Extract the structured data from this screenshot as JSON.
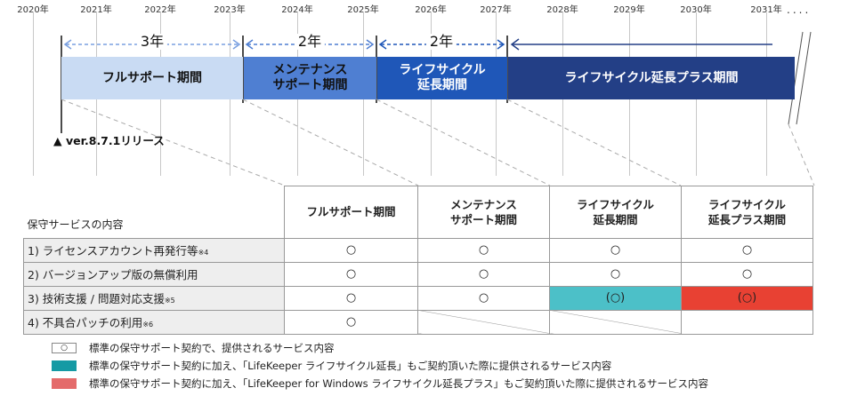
{
  "timeline": {
    "years": [
      "2020年",
      "2021年",
      "2022年",
      "2023年",
      "2024年",
      "2025年",
      "2026年",
      "2027年",
      "2028年",
      "2029年",
      "2030年",
      "2031年"
    ],
    "more_marker": "....",
    "spans": [
      {
        "label": "3年"
      },
      {
        "label": "2年"
      },
      {
        "label": "2年"
      }
    ],
    "phases": [
      {
        "label": "フルサポート期間",
        "color": "#c9dbf3",
        "text_color": "#111111"
      },
      {
        "label": "メンテナンス\nサポート期間",
        "color": "#4f7fd2",
        "text_color": "#111111"
      },
      {
        "label": "ライフサイクル\n延長期間",
        "color": "#1f57b8",
        "text_color": "#ffffff"
      },
      {
        "label": "ライフサイクル延長プラス期間",
        "color": "#233f86",
        "text_color": "#ffffff"
      }
    ],
    "release": {
      "marker": "▲",
      "text": "ver.8.7.1リリース"
    }
  },
  "table": {
    "corner_label": "保守サービスの内容",
    "headers": [
      "フルサポート期間",
      "メンテナンス\nサポート期間",
      "ライフサイクル\n延長期間",
      "ライフサイクル\n延長プラス期間"
    ],
    "rows": [
      {
        "label": "1) ライセンスアカウント再発行等",
        "note": "※4",
        "cells": [
          "○",
          "○",
          "○",
          "○"
        ]
      },
      {
        "label": "2) バージョンアップ版の無償利用",
        "note": "",
        "cells": [
          "○",
          "○",
          "○",
          "○"
        ]
      },
      {
        "label": "3) 技術支援 / 問題対応支援",
        "note": "※5",
        "cells": [
          "○",
          "○",
          "(○)",
          "(○)"
        ]
      },
      {
        "label": "4) 不具合パッチの利用",
        "note": "※6",
        "cells": [
          "○",
          "",
          "",
          ""
        ]
      }
    ],
    "highlight_colors": {
      "lifecycle": "#4cc0c8",
      "lifecycle_plus": "#e84133"
    }
  },
  "legend": [
    {
      "swatch_text": "○",
      "swatch_color": "#ffffff",
      "text": "標準の保守サポート契約で、提供されるサービス内容"
    },
    {
      "swatch_text": "",
      "swatch_color": "#159aa4",
      "text": "標準の保守サポート契約に加え、「LifeKeeper ライフサイクル延長」もご契約頂いた際に提供されるサービス内容"
    },
    {
      "swatch_text": "",
      "swatch_color": "#e46b6b",
      "text": "標準の保守サポート契約に加え、「LifeKeeper for Windows ライフサイクル延長プラス」もご契約頂いた際に提供されるサービス内容"
    }
  ]
}
